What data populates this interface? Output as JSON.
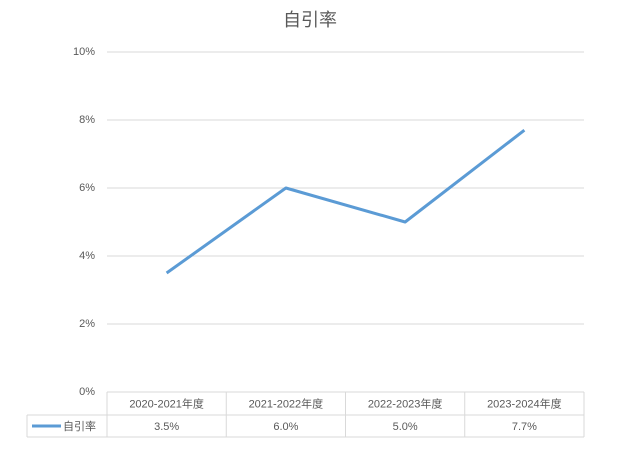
{
  "chart_data": {
    "type": "line",
    "title": "自引率",
    "categories": [
      "2020-2021年度",
      "2021-2022年度",
      "2022-2023年度",
      "2023-2024年度"
    ],
    "series": [
      {
        "name": "自引率",
        "color": "#5b9bd5",
        "values": [
          3.5,
          6.0,
          5.0,
          7.7
        ],
        "value_labels": [
          "3.5%",
          "6.0%",
          "5.0%",
          "7.7%"
        ]
      }
    ],
    "ylim": [
      0,
      10
    ],
    "yticks": [
      {
        "value": 0,
        "label": "0%"
      },
      {
        "value": 2,
        "label": "2%"
      },
      {
        "value": 4,
        "label": "4%"
      },
      {
        "value": 6,
        "label": "6%"
      },
      {
        "value": 8,
        "label": "8%"
      },
      {
        "value": 10,
        "label": "10%"
      }
    ],
    "grid": true,
    "data_table": true
  }
}
